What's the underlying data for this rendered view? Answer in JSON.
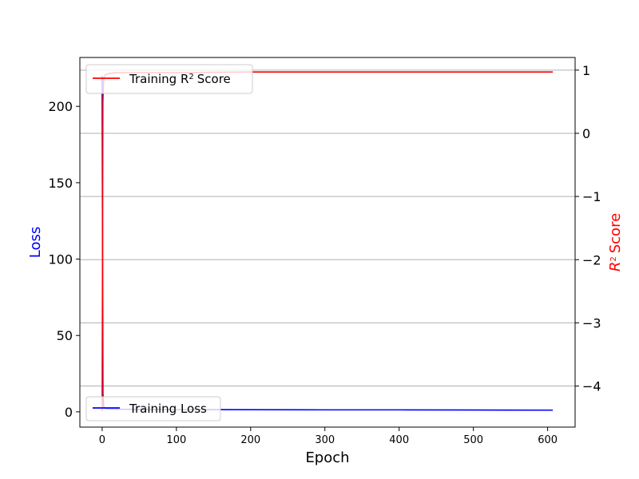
{
  "chart_data": {
    "type": "line",
    "title": "",
    "xlabel": "Epoch",
    "ylabel_left": "Loss",
    "ylabel_right_prefix": "R",
    "ylabel_right_suffix": "Score",
    "ylabel_right_sup": "2",
    "xlim": [
      -30,
      637
    ],
    "ylim_left": [
      -10,
      232
    ],
    "ylim_right": [
      -4.65,
      1.2
    ],
    "x_ticks": [
      0,
      100,
      200,
      300,
      400,
      500,
      600
    ],
    "x_tick_labels": [
      "0",
      "100",
      "200",
      "300",
      "400",
      "500",
      "600"
    ],
    "y_ticks_left": [
      0,
      50,
      100,
      150,
      200
    ],
    "y_tick_labels_left": [
      "0",
      "50",
      "100",
      "150",
      "200"
    ],
    "y_ticks_right": [
      1,
      0,
      -1,
      -2,
      -3,
      -4
    ],
    "y_tick_labels_right": [
      "1",
      "0",
      "−1",
      "−2",
      "−3",
      "−4"
    ],
    "grid": "horizontal lines at right-axis ticks",
    "series": [
      {
        "name": "Training Loss",
        "axis": "left",
        "color": "#0000ff",
        "legend_placement": "lower-left",
        "x": [
          0,
          1,
          2,
          3,
          5,
          10,
          20,
          50,
          100,
          200,
          300,
          400,
          500,
          607
        ],
        "y": [
          220,
          12,
          4,
          2.5,
          2,
          1.8,
          1.7,
          1.6,
          1.5,
          1.4,
          1.3,
          1.3,
          1.2,
          1.1
        ]
      },
      {
        "name": "Training R² Score",
        "legend_prefix": "Training R",
        "legend_sup": "2",
        "legend_suffix": "Score",
        "axis": "right",
        "color": "#ff0000",
        "legend_placement": "upper-left",
        "x": [
          0,
          1,
          2,
          3,
          5,
          10,
          20,
          50,
          100,
          200,
          300,
          400,
          500,
          607
        ],
        "y": [
          -4.4,
          0.5,
          0.85,
          0.9,
          0.93,
          0.95,
          0.96,
          0.96,
          0.96,
          0.97,
          0.97,
          0.97,
          0.97,
          0.97
        ]
      }
    ]
  }
}
